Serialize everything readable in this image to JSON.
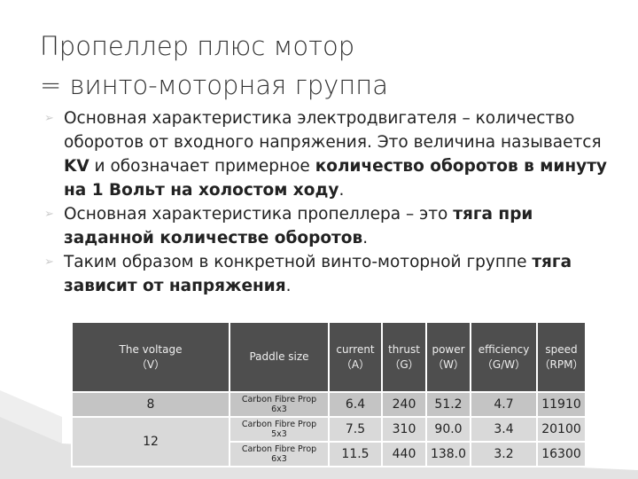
{
  "title": [
    "Пропеллер плюс мотор",
    "= винто-моторная группа"
  ],
  "bullets": [
    [
      {
        "text": "Основная характеристика электродвигателя – количество оборотов от входного напряжения. Это величина называется ",
        "bold": false
      },
      {
        "text": "KV",
        "bold": true
      },
      {
        "text": " и обозначает примерное ",
        "bold": false
      },
      {
        "text": "количество оборотов в минуту на 1 Вольт на холостом ходу",
        "bold": true
      },
      {
        "text": ".",
        "bold": false
      }
    ],
    [
      {
        "text": "Основная характеристика пропеллера – это ",
        "bold": false
      },
      {
        "text": "тяга при заданной количестве оборотов",
        "bold": true
      },
      {
        "text": ".",
        "bold": false
      }
    ],
    [
      {
        "text": "Таким образом в конкретной винто-моторной группе ",
        "bold": false
      },
      {
        "text": "тяга зависит от напряжения",
        "bold": true
      },
      {
        "text": ".",
        "bold": false
      }
    ]
  ],
  "table": {
    "headers": [
      [
        "The voltage",
        "（V）"
      ],
      [
        "Paddle size"
      ],
      [
        "current",
        "（A）"
      ],
      [
        "thrust",
        "（G）"
      ],
      [
        "power",
        "（W）"
      ],
      [
        "efficiency",
        "（G/W）"
      ],
      [
        "speed",
        "（RPM）"
      ]
    ],
    "groups": [
      {
        "voltage": "8",
        "rows": [
          [
            [
              "Carbon Fibre Prop",
              "6x3"
            ],
            "6.4",
            "240",
            "51.2",
            "4.7",
            "11910"
          ]
        ]
      },
      {
        "voltage": "12",
        "rows": [
          [
            [
              "Carbon Fibre Prop",
              "5x3"
            ],
            "7.5",
            "310",
            "90.0",
            "3.4",
            "20100"
          ],
          [
            [
              "Carbon Fibre Prop",
              "6x3"
            ],
            "11.5",
            "440",
            "138.0",
            "3.2",
            "16300"
          ]
        ]
      }
    ]
  }
}
